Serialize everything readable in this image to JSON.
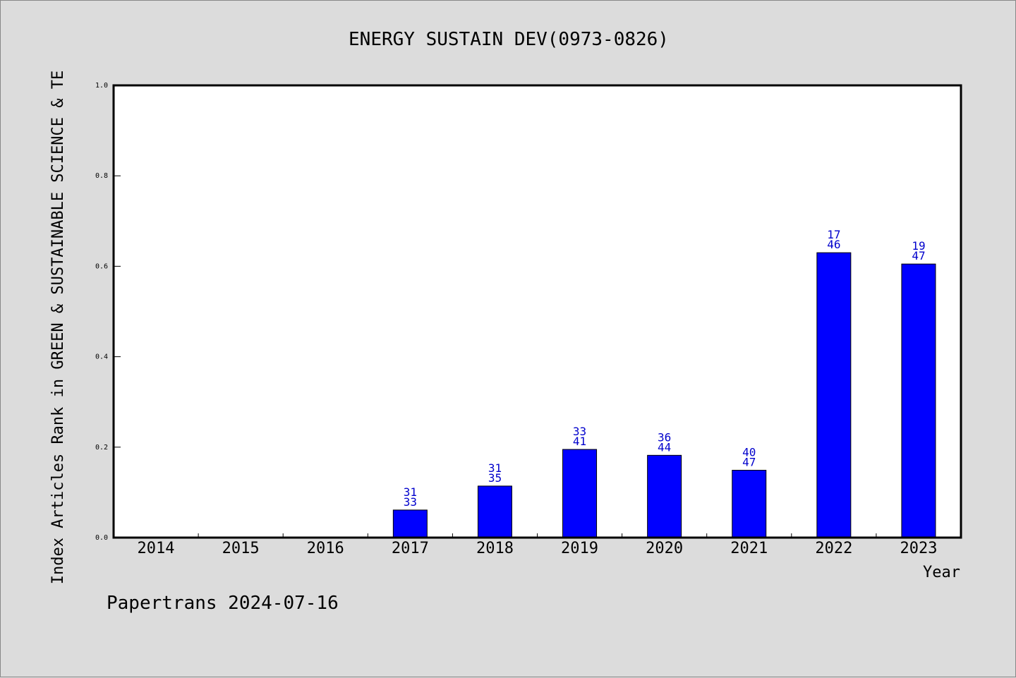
{
  "chart_data": {
    "type": "bar",
    "title": "ENERGY SUSTAIN DEV(0973-0826)",
    "ylabel": "Index Articles Rank in GREEN & SUSTAINABLE SCIENCE & TE",
    "xlabel": "Year",
    "categories": [
      "2014",
      "2015",
      "2016",
      "2017",
      "2018",
      "2019",
      "2020",
      "2021",
      "2022",
      "2023"
    ],
    "values": [
      0,
      0,
      0,
      0.061,
      0.114,
      0.195,
      0.182,
      0.149,
      0.63,
      0.605
    ],
    "labels_top": [
      "",
      "",
      "",
      "31",
      "31",
      "33",
      "36",
      "40",
      "17",
      "19"
    ],
    "labels_bottom": [
      "",
      "",
      "",
      "33",
      "35",
      "41",
      "44",
      "47",
      "46",
      "47"
    ],
    "ylim": [
      0,
      1.0
    ],
    "yticks": [
      "0.0",
      "0.2",
      "0.4",
      "0.6",
      "0.8",
      "1.0"
    ],
    "grid": false,
    "bar_color": "#0000ff",
    "label_color": "#0000cc"
  },
  "footer": {
    "text": "Papertrans 2024-07-16"
  }
}
